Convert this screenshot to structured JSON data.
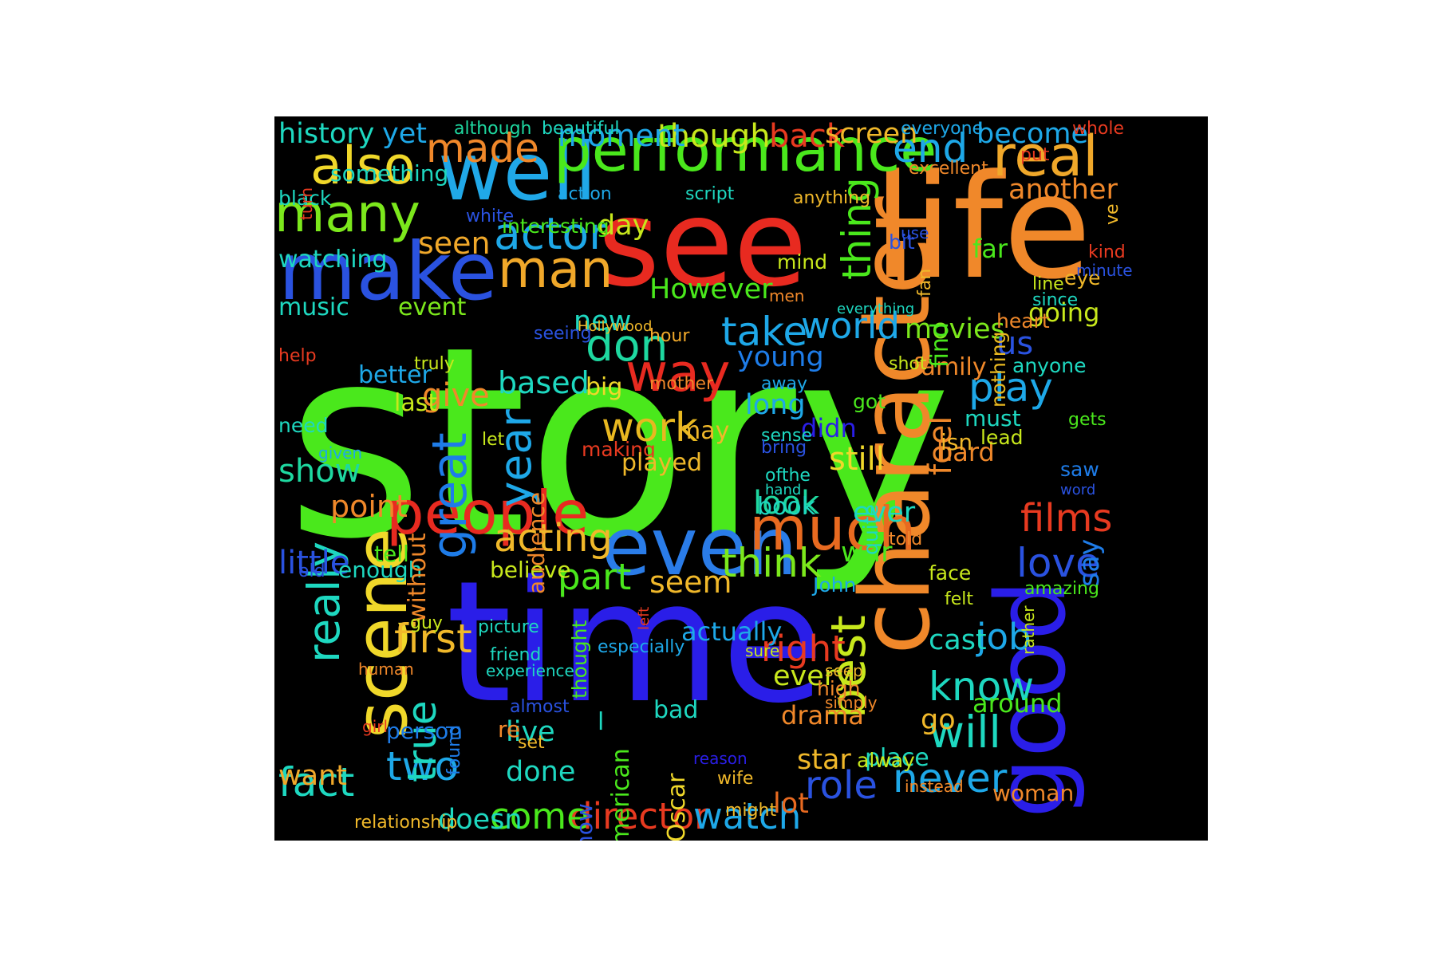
{
  "words": [
    {
      "text": "story",
      "color": "#4ae81c"
    },
    {
      "text": "see",
      "color": "#e82a20"
    },
    {
      "text": "life",
      "color": "#f0882a"
    },
    {
      "text": "time",
      "color": "#2a1ee8"
    },
    {
      "text": "make",
      "color": "#2a52e0"
    },
    {
      "text": "well",
      "color": "#20a8e8"
    },
    {
      "text": "performance",
      "color": "#4ae81c"
    },
    {
      "text": "even",
      "color": "#2a7ce8"
    },
    {
      "text": "character",
      "color": "#f0882a"
    },
    {
      "text": "good",
      "color": "#2a1ee8"
    },
    {
      "text": "scene",
      "color": "#f0d82a"
    },
    {
      "text": "people",
      "color": "#e82a20"
    },
    {
      "text": "much",
      "color": "#e86a20"
    },
    {
      "text": "way",
      "color": "#e82a20"
    },
    {
      "text": "don",
      "color": "#1ed8a0"
    },
    {
      "text": "work",
      "color": "#e8b820"
    },
    {
      "text": "also",
      "color": "#f0d82a"
    },
    {
      "text": "many",
      "color": "#7ce81c"
    },
    {
      "text": "real",
      "color": "#f0a82a"
    },
    {
      "text": "man",
      "color": "#f0a82a"
    },
    {
      "text": "actor",
      "color": "#1ea8e8"
    },
    {
      "text": "made",
      "color": "#f0882a"
    },
    {
      "text": "end",
      "color": "#1ea8e8"
    },
    {
      "text": "great",
      "color": "#1e7ce8"
    },
    {
      "text": "year",
      "color": "#1ea8e8"
    },
    {
      "text": "director",
      "color": "#e83a20"
    },
    {
      "text": "never",
      "color": "#1ea8e8"
    },
    {
      "text": "know",
      "color": "#1ed8c0"
    },
    {
      "text": "will",
      "color": "#1ed8c0"
    },
    {
      "text": "films",
      "color": "#e83a20"
    },
    {
      "text": "love",
      "color": "#2a52e0"
    },
    {
      "text": "play",
      "color": "#1ea8e8"
    },
    {
      "text": "think",
      "color": "#7ce81c"
    },
    {
      "text": "best",
      "color": "#c8e81c"
    },
    {
      "text": "really",
      "color": "#1ed8c0"
    },
    {
      "text": "come",
      "color": "#4ae81c"
    },
    {
      "text": "watch",
      "color": "#1ea8e8"
    },
    {
      "text": "fact",
      "color": "#1ed8c0"
    },
    {
      "text": "two",
      "color": "#1ea8e8"
    },
    {
      "text": "true",
      "color": "#1ed8c0"
    },
    {
      "text": "first",
      "color": "#f0b82a"
    },
    {
      "text": "role",
      "color": "#2a52e0"
    },
    {
      "text": "acting",
      "color": "#f0b82a"
    },
    {
      "text": "part",
      "color": "#4ae81c"
    },
    {
      "text": "thing",
      "color": "#4ae81c"
    },
    {
      "text": "world",
      "color": "#1ea8e8"
    },
    {
      "text": "take",
      "color": "#1ea8e8"
    },
    {
      "text": "movies",
      "color": "#7ce81c"
    },
    {
      "text": "us",
      "color": "#2a52e0"
    },
    {
      "text": "right",
      "color": "#e83a20"
    },
    {
      "text": "job",
      "color": "#1ea8e8"
    },
    {
      "text": "cast",
      "color": "#1ed8c0"
    },
    {
      "text": "seen",
      "color": "#f0a82a"
    },
    {
      "text": "show",
      "color": "#1ed8a0"
    },
    {
      "text": "give",
      "color": "#f0882a"
    },
    {
      "text": "based",
      "color": "#1ed8c0"
    },
    {
      "text": "feel",
      "color": "#f0882a"
    },
    {
      "text": "still",
      "color": "#f0d82a"
    },
    {
      "text": "look",
      "color": "#1ed8a0"
    },
    {
      "text": "seem",
      "color": "#f0b82a"
    },
    {
      "text": "point",
      "color": "#f0882a"
    },
    {
      "text": "little",
      "color": "#2a52e0"
    },
    {
      "text": "want",
      "color": "#f0a82a"
    },
    {
      "text": "though",
      "color": "#c8e81c"
    },
    {
      "text": "back",
      "color": "#e83a20"
    },
    {
      "text": "moment",
      "color": "#1ea8e8"
    },
    {
      "text": "history",
      "color": "#1ed8c0"
    },
    {
      "text": "yet",
      "color": "#1ea8e8"
    },
    {
      "text": "screen",
      "color": "#f0b82a"
    },
    {
      "text": "become",
      "color": "#1ea8e8"
    },
    {
      "text": "another",
      "color": "#f0882a"
    },
    {
      "text": "watching",
      "color": "#1ed8c0"
    },
    {
      "text": "music",
      "color": "#1ed8c0"
    },
    {
      "text": "event",
      "color": "#7ce81c"
    },
    {
      "text": "better",
      "color": "#1ea8e8"
    },
    {
      "text": "last",
      "color": "#c8e81c"
    },
    {
      "text": "new",
      "color": "#1ed8c0"
    },
    {
      "text": "day",
      "color": "#c8e81c"
    },
    {
      "text": "However",
      "color": "#4ae81c"
    },
    {
      "text": "young",
      "color": "#1e7ce8"
    },
    {
      "text": "long",
      "color": "#1ea8e8"
    },
    {
      "text": "family",
      "color": "#f0882a"
    },
    {
      "text": "going",
      "color": "#c8e81c"
    },
    {
      "text": "ever",
      "color": "#1ed8c0"
    },
    {
      "text": "war",
      "color": "#4ae81c"
    },
    {
      "text": "every",
      "color": "#c8e81c"
    },
    {
      "text": "star",
      "color": "#f0b82a"
    },
    {
      "text": "drama",
      "color": "#f0882a"
    },
    {
      "text": "actually",
      "color": "#1ea8e8"
    },
    {
      "text": "doesn",
      "color": "#1ed8c0"
    },
    {
      "text": "lot",
      "color": "#e86a20"
    },
    {
      "text": "live",
      "color": "#1ed8c0"
    },
    {
      "text": "done",
      "color": "#1ed8c0"
    },
    {
      "text": "find",
      "color": "#4ae81c"
    },
    {
      "text": "far",
      "color": "#4ae81c"
    },
    {
      "text": "say",
      "color": "#1e7ce8"
    },
    {
      "text": "hard",
      "color": "#f0882a"
    },
    {
      "text": "didn",
      "color": "#2a1ee8"
    },
    {
      "text": "around",
      "color": "#4ae81c"
    },
    {
      "text": "go",
      "color": "#f0b82a"
    },
    {
      "text": "place",
      "color": "#1ed8c0"
    },
    {
      "text": "must",
      "color": "#1ed8c0"
    },
    {
      "text": "believe",
      "color": "#c8e81c"
    },
    {
      "text": "enough",
      "color": "#1ed8c0"
    },
    {
      "text": "tell",
      "color": "#4ae81c"
    },
    {
      "text": "without",
      "color": "#f0882a"
    },
    {
      "text": "audience",
      "color": "#f0882a"
    },
    {
      "text": "person",
      "color": "#1e7ce8"
    },
    {
      "text": "American",
      "color": "#4ae81c"
    },
    {
      "text": "Oscar",
      "color": "#f0d82a"
    },
    {
      "text": "now",
      "color": "#2a52e0"
    },
    {
      "text": "thought",
      "color": "#4ae81c"
    },
    {
      "text": "especially",
      "color": "#1ea8e8"
    },
    {
      "text": "something",
      "color": "#1ed8c0"
    },
    {
      "text": "black",
      "color": "#1ed8c0"
    },
    {
      "text": "interesting",
      "color": "#4ae81c"
    },
    {
      "text": "although",
      "color": "#1ed8a0"
    },
    {
      "text": "beautiful",
      "color": "#1ed8c0"
    },
    {
      "text": "everyone",
      "color": "#1ea8e8"
    },
    {
      "text": "whole",
      "color": "#e83a20"
    },
    {
      "text": "excellent",
      "color": "#f0882a"
    },
    {
      "text": "put",
      "color": "#e83a20"
    },
    {
      "text": "ve",
      "color": "#f0b82a"
    },
    {
      "text": "action",
      "color": "#1ea8e8"
    },
    {
      "text": "script",
      "color": "#1ed8c0"
    },
    {
      "text": "anything",
      "color": "#f0b82a"
    },
    {
      "text": "mind",
      "color": "#c8e81c"
    },
    {
      "text": "bit",
      "color": "#2a52e0"
    },
    {
      "text": "men",
      "color": "#f0882a"
    },
    {
      "text": "everything",
      "color": "#1ed8c0"
    },
    {
      "text": "Hollywood",
      "color": "#f0b82a"
    },
    {
      "text": "seeing",
      "color": "#2a52e0"
    },
    {
      "text": "truly",
      "color": "#c8e81c"
    },
    {
      "text": "help",
      "color": "#e83a20"
    },
    {
      "text": "need",
      "color": "#1ed8c0"
    },
    {
      "text": "given",
      "color": "#1ea8e8"
    },
    {
      "text": "old",
      "color": "#2a52e0"
    },
    {
      "text": "guy",
      "color": "#c8e81c"
    },
    {
      "text": "human",
      "color": "#f0882a"
    },
    {
      "text": "girl",
      "color": "#e83a20"
    },
    {
      "text": "found",
      "color": "#1e7ce8"
    },
    {
      "text": "relationship",
      "color": "#f0b82a"
    },
    {
      "text": "picture",
      "color": "#1ed8c0"
    },
    {
      "text": "friend",
      "color": "#1ed8c0"
    },
    {
      "text": "experience",
      "color": "#1ed8c0"
    },
    {
      "text": "almost",
      "color": "#2a52e0"
    },
    {
      "text": "re",
      "color": "#f0882a"
    },
    {
      "text": "set",
      "color": "#f0b82a"
    },
    {
      "text": "hour",
      "color": "#f0a82a"
    },
    {
      "text": "mother",
      "color": "#f0882a"
    },
    {
      "text": "big",
      "color": "#f0d82a"
    },
    {
      "text": "making",
      "color": "#e83a20"
    },
    {
      "text": "may",
      "color": "#f0b82a"
    },
    {
      "text": "played",
      "color": "#f0b82a"
    },
    {
      "text": "let",
      "color": "#c8e81c"
    },
    {
      "text": "left",
      "color": "#e83a20"
    },
    {
      "text": "away",
      "color": "#1ea8e8"
    },
    {
      "text": "sense",
      "color": "#1ed8c0"
    },
    {
      "text": "bring",
      "color": "#2a52e0"
    },
    {
      "text": "ofthe",
      "color": "#1ed8c0"
    },
    {
      "text": "hand",
      "color": "#1ed8c0"
    },
    {
      "text": "book",
      "color": "#1ed8c0"
    },
    {
      "text": "got",
      "color": "#4ae81c"
    },
    {
      "text": "quite",
      "color": "#1ed8c0"
    },
    {
      "text": "John",
      "color": "#1ea8e8"
    },
    {
      "text": "told",
      "color": "#f0882a"
    },
    {
      "text": "face",
      "color": "#c8e81c"
    },
    {
      "text": "felt",
      "color": "#c8e81c"
    },
    {
      "text": "isn",
      "color": "#f0b82a"
    },
    {
      "text": "gets",
      "color": "#4ae81c"
    },
    {
      "text": "lead",
      "color": "#c8e81c"
    },
    {
      "text": "saw",
      "color": "#1e7ce8"
    },
    {
      "text": "word",
      "color": "#2a52e0"
    },
    {
      "text": "anyone",
      "color": "#1ed8c0"
    },
    {
      "text": "shot",
      "color": "#c8e81c"
    },
    {
      "text": "nothing",
      "color": "#e8b820"
    },
    {
      "text": "heart",
      "color": "#f0882a"
    },
    {
      "text": "since",
      "color": "#1ed8c0"
    },
    {
      "text": "line",
      "color": "#c8e81c"
    },
    {
      "text": "eye",
      "color": "#f0b82a"
    },
    {
      "text": "kind",
      "color": "#e83a20"
    },
    {
      "text": "minute",
      "color": "#2a52e0"
    },
    {
      "text": "fan",
      "color": "#f0b82a"
    },
    {
      "text": "use",
      "color": "#2a52e0"
    },
    {
      "text": "turn",
      "color": "#e83a20"
    },
    {
      "text": "white",
      "color": "#2a52e0"
    },
    {
      "text": "sure",
      "color": "#c8e81c"
    },
    {
      "text": "seep",
      "color": "#f0b82a"
    },
    {
      "text": "high",
      "color": "#f0882a"
    },
    {
      "text": "simply",
      "color": "#f0882a"
    },
    {
      "text": "bad",
      "color": "#1ed8c0"
    },
    {
      "text": "reason",
      "color": "#2a1ee8"
    },
    {
      "text": "wife",
      "color": "#f0b82a"
    },
    {
      "text": "might",
      "color": "#f0b82a"
    },
    {
      "text": "alway",
      "color": "#c8e81c"
    },
    {
      "text": "instead",
      "color": "#f0882a"
    },
    {
      "text": "woman",
      "color": "#f0882a"
    },
    {
      "text": "rather",
      "color": "#c8e81c"
    },
    {
      "text": "amazing",
      "color": "#4ae81c"
    },
    {
      "text": "l",
      "color": "#1ed8c0"
    }
  ]
}
